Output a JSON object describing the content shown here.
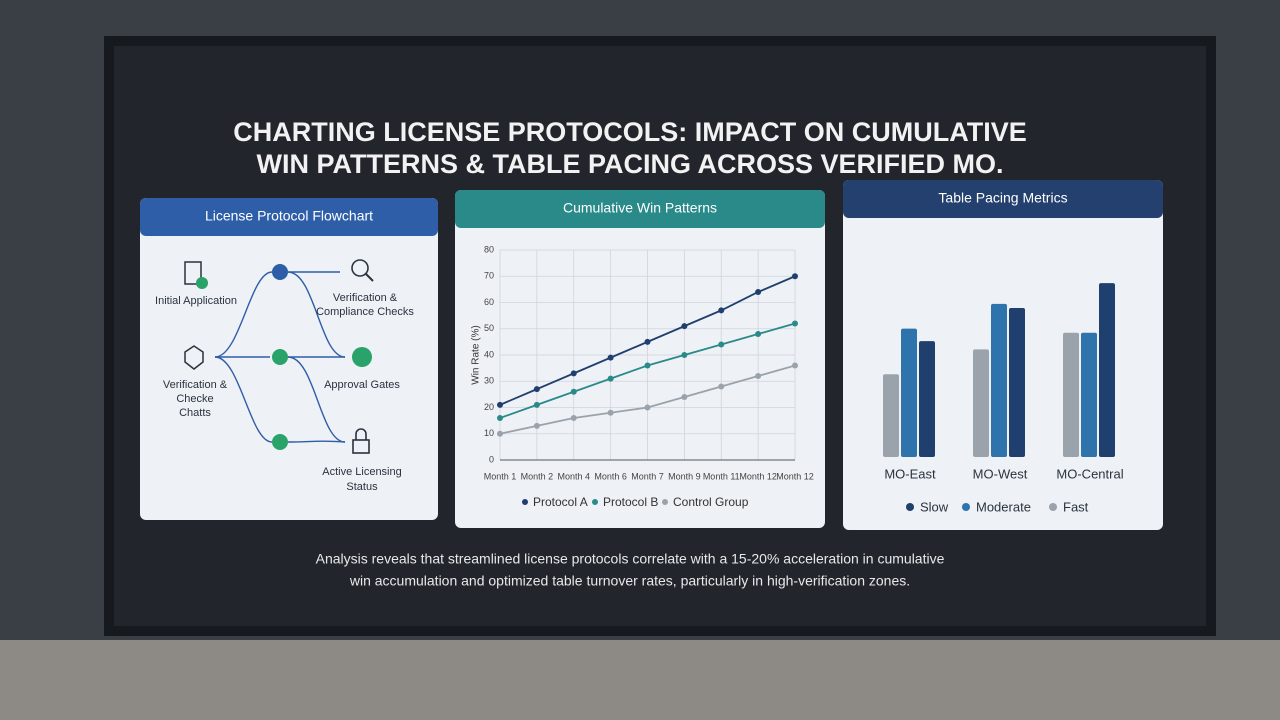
{
  "header": {
    "title_lines": [
      "CHARTING LICENSE PROTOCOLS: IMPACT ON CUMULATIVE",
      "WIN PATTERNS & TABLE PACING ACROSS VERIFIED MO."
    ]
  },
  "flowchart": {
    "title": "License Protocol Flowchart",
    "nodes": [
      {
        "label_lines": [
          "Initial Application"
        ]
      },
      {
        "label_lines": [
          "Verification &",
          "Compliance Checks"
        ]
      },
      {
        "label_lines": [
          "Verification &",
          "Checke",
          "Chatts"
        ]
      },
      {
        "label_lines": [
          "Approval Gates"
        ]
      },
      {
        "label_lines": [
          "Active Licensing",
          "Status"
        ]
      }
    ]
  },
  "chart_data": [
    {
      "type": "line",
      "title": "Cumulative Win Patterns",
      "y_label": "Win Rate (%)",
      "categories": [
        "Month 1",
        "Month 2",
        "Month 4",
        "Month 6",
        "Month 7",
        "Month 9",
        "Month 11",
        "Month 12",
        "Month 12"
      ],
      "ylim": [
        0,
        80
      ],
      "yticks": [
        0,
        10,
        20,
        30,
        40,
        50,
        60,
        70,
        80
      ],
      "grid": true,
      "series": [
        {
          "name": "Protocol A",
          "color": "#1f3f6e",
          "values": [
            21,
            27,
            33,
            39,
            45,
            51,
            57,
            64,
            70
          ]
        },
        {
          "name": "Protocol B",
          "color": "#2a8a8a",
          "values": [
            16,
            21,
            26,
            31,
            36,
            40,
            44,
            48,
            52
          ]
        },
        {
          "name": "Control Group",
          "color": "#9aa3ab",
          "values": [
            10,
            13,
            16,
            18,
            20,
            24,
            28,
            32,
            36
          ]
        }
      ]
    },
    {
      "type": "bar",
      "title": "Table Pacing Metrics",
      "categories": [
        "MO-East",
        "MO-West",
        "MO-Central"
      ],
      "ylim": [
        0,
        100
      ],
      "series": [
        {
          "name": "Slow",
          "color": "#1f3f6e",
          "values": [
            56,
            72,
            84
          ]
        },
        {
          "name": "Moderate",
          "color": "#2f73ad",
          "values": [
            62,
            74,
            60
          ]
        },
        {
          "name": "Fast",
          "color": "#9aa3ab",
          "values": [
            40,
            52,
            60
          ]
        }
      ]
    }
  ],
  "caption": {
    "lines": [
      "Analysis reveals that streamlined license protocols correlate with a 15-20% acceleration in cumulative",
      "win accumulation and optimized table turnover rates, particularly in high-verification zones."
    ]
  }
}
